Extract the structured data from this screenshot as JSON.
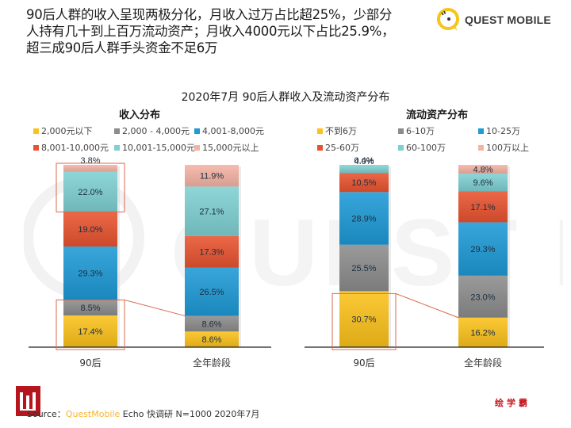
{
  "headline": {
    "line1": "90后人群的收入呈现两极分化，月收入过万占比超25%，少部分",
    "line2": "人持有几十到上百万流动资产；月收入4000元以下占比25.9%，",
    "line3": "超三成90后人群手头资金不足6万"
  },
  "logo": {
    "text": "QUEST MOBILE",
    "icon": "quest-mobile-logo-icon"
  },
  "source": {
    "prefix": "Source：",
    "brand": "QuestMobile",
    "rest": " Echo 快调研 N=1000 2020年7月"
  },
  "footer_brand": "绘学霸",
  "colors": {
    "yellow": "#fcc21b",
    "gray": "#8c8c8c",
    "blue": "#1e9ad6",
    "red": "#e8532f",
    "teal": "#7fd0d2",
    "pink": "#f5b3a5",
    "highlight_box": "#d9694f"
  },
  "chart_data": [
    {
      "type": "bar",
      "stacked": true,
      "title": "2020年7月 90后人群收入及流动资产分布",
      "subtitle": "收入分布",
      "categories": [
        "90后",
        "全年龄段"
      ],
      "series": [
        {
          "name": "2,000元以下",
          "color": "#fcc21b",
          "values": [
            17.4,
            8.6
          ]
        },
        {
          "name": "2,000 - 4,000元",
          "color": "#8c8c8c",
          "values": [
            8.5,
            8.6
          ]
        },
        {
          "name": "4,001-8,000元",
          "color": "#1e9ad6",
          "values": [
            29.3,
            26.5
          ]
        },
        {
          "name": "8,001-10,000元",
          "color": "#e8532f",
          "values": [
            19.0,
            17.3
          ]
        },
        {
          "name": "10,001-15,000元",
          "color": "#7fd0d2",
          "values": [
            22.0,
            27.1
          ]
        },
        {
          "name": "15,000元以上",
          "color": "#f5b3a5",
          "values": [
            3.8,
            11.9
          ]
        }
      ],
      "data_labels": [
        [
          "17.4%",
          "8.5%",
          "29.3%",
          "19.0%",
          "22.0%",
          "3.8%"
        ],
        [
          "8.6%",
          "8.6%",
          "26.5%",
          "17.3%",
          "27.1%",
          "11.9%"
        ]
      ],
      "ylim": [
        0,
        100
      ],
      "legend": "top",
      "highlights": [
        "90后: 2,000元以下 + 2,000 - 4,000元",
        "90后: 10,001-15,000元 + 15,000元以上"
      ]
    },
    {
      "type": "bar",
      "stacked": true,
      "subtitle": "流动资产分布",
      "categories": [
        "90后",
        "全年龄段"
      ],
      "series": [
        {
          "name": "不到6万",
          "color": "#fcc21b",
          "values": [
            30.7,
            16.2
          ]
        },
        {
          "name": "6-10万",
          "color": "#8c8c8c",
          "values": [
            25.5,
            23.0
          ]
        },
        {
          "name": "10-25万",
          "color": "#1e9ad6",
          "values": [
            28.9,
            29.3
          ]
        },
        {
          "name": "25-60万",
          "color": "#e8532f",
          "values": [
            10.5,
            17.1
          ]
        },
        {
          "name": "60-100万",
          "color": "#7fd0d2",
          "values": [
            4.0,
            9.6
          ]
        },
        {
          "name": "100万以上",
          "color": "#f5b3a5",
          "values": [
            0.4,
            4.8
          ]
        }
      ],
      "data_labels": [
        [
          "30.7%",
          "25.5%",
          "28.9%",
          "10.5%",
          "4.0%",
          "0.4%"
        ],
        [
          "16.2%",
          "23.0%",
          "29.3%",
          "17.1%",
          "9.6%",
          "4.8%"
        ]
      ],
      "ylim": [
        0,
        100
      ],
      "legend": "top",
      "highlights": [
        "90后: 不到6万"
      ]
    }
  ]
}
